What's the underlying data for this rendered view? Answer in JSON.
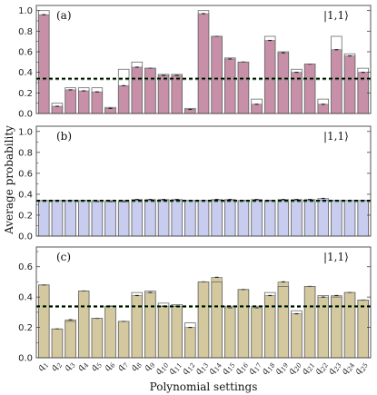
{
  "figure": {
    "ylabel": "Average probability",
    "xlabel": "Polynomial settings"
  },
  "chart_data": [
    {
      "type": "bar",
      "panel_label": "(a)",
      "state_label": "|1,1⟩",
      "categories": [
        "q1",
        "q2",
        "q3",
        "q4",
        "q5",
        "q6",
        "q7",
        "q8",
        "q9",
        "q10",
        "q11",
        "q12",
        "q13",
        "q14",
        "q15",
        "q16",
        "q17",
        "q18",
        "q19",
        "q20",
        "q21",
        "q22",
        "q23",
        "q24",
        "q25"
      ],
      "series": [
        {
          "values": [
            0.96,
            0.07,
            0.23,
            0.22,
            0.21,
            0.05,
            0.27,
            0.45,
            0.44,
            0.37,
            0.37,
            0.04,
            0.97,
            0.75,
            0.53,
            0.5,
            0.09,
            0.71,
            0.59,
            0.4,
            0.48,
            0.09,
            0.62,
            0.56,
            0.4
          ]
        },
        {
          "values": [
            1.0,
            0.1,
            0.25,
            0.25,
            0.25,
            0.06,
            0.43,
            0.5,
            0.44,
            0.38,
            0.38,
            0.05,
            1.0,
            0.75,
            0.54,
            0.5,
            0.14,
            0.75,
            0.6,
            0.43,
            0.48,
            0.14,
            0.75,
            0.58,
            0.44
          ]
        }
      ],
      "reference_line": 0.34,
      "ylim": [
        0,
        1.05
      ],
      "yticks": [
        "0.0",
        "0.2",
        "0.4",
        "0.6",
        "0.8",
        "1.0"
      ],
      "fill_color": "#c78fa8",
      "grid": false
    },
    {
      "type": "bar",
      "panel_label": "(b)",
      "state_label": "|1,1⟩",
      "categories": [
        "q1",
        "q2",
        "q3",
        "q4",
        "q5",
        "q6",
        "q7",
        "q8",
        "q9",
        "q10",
        "q11",
        "q12",
        "q13",
        "q14",
        "q15",
        "q16",
        "q17",
        "q18",
        "q19",
        "q20",
        "q21",
        "q22",
        "q23",
        "q24",
        "q25"
      ],
      "series": [
        {
          "values": [
            0.34,
            0.34,
            0.34,
            0.34,
            0.33,
            0.33,
            0.33,
            0.35,
            0.35,
            0.35,
            0.35,
            0.34,
            0.34,
            0.35,
            0.35,
            0.34,
            0.35,
            0.34,
            0.35,
            0.35,
            0.35,
            0.36,
            0.34,
            0.34,
            0.34
          ]
        },
        {
          "values": [
            0.34,
            0.34,
            0.34,
            0.34,
            0.34,
            0.34,
            0.34,
            0.34,
            0.34,
            0.34,
            0.34,
            0.34,
            0.34,
            0.34,
            0.34,
            0.34,
            0.34,
            0.34,
            0.34,
            0.34,
            0.34,
            0.34,
            0.34,
            0.34,
            0.34
          ]
        }
      ],
      "reference_line": 0.34,
      "ylim": [
        0,
        1.05
      ],
      "yticks": [
        "0.0",
        "0.2",
        "0.4",
        "0.6",
        "0.8",
        "1.0"
      ],
      "fill_color": "#c8cdf0",
      "grid": false
    },
    {
      "type": "bar",
      "panel_label": "(c)",
      "state_label": "|1,1⟩",
      "categories": [
        "q1",
        "q2",
        "q3",
        "q4",
        "q5",
        "q6",
        "q7",
        "q8",
        "q9",
        "q10",
        "q11",
        "q12",
        "q13",
        "q14",
        "q15",
        "q16",
        "q17",
        "q18",
        "q19",
        "q20",
        "q21",
        "q22",
        "q23",
        "q24",
        "q25"
      ],
      "series": [
        {
          "values": [
            0.48,
            0.19,
            0.25,
            0.44,
            0.26,
            0.34,
            0.24,
            0.41,
            0.43,
            0.34,
            0.34,
            0.2,
            0.5,
            0.53,
            0.33,
            0.45,
            0.33,
            0.41,
            0.5,
            0.29,
            0.47,
            0.4,
            0.41,
            0.43,
            0.38
          ]
        },
        {
          "values": [
            0.48,
            0.19,
            0.24,
            0.44,
            0.26,
            0.34,
            0.24,
            0.43,
            0.44,
            0.36,
            0.35,
            0.23,
            0.5,
            0.5,
            0.34,
            0.45,
            0.34,
            0.43,
            0.47,
            0.31,
            0.47,
            0.41,
            0.4,
            0.43,
            0.38
          ]
        }
      ],
      "reference_line": 0.34,
      "ylim": [
        0,
        0.73
      ],
      "yticks": [
        "0.0",
        "0.2",
        "0.4",
        "0.6"
      ],
      "fill_color": "#d4c99e",
      "grid": false
    }
  ]
}
